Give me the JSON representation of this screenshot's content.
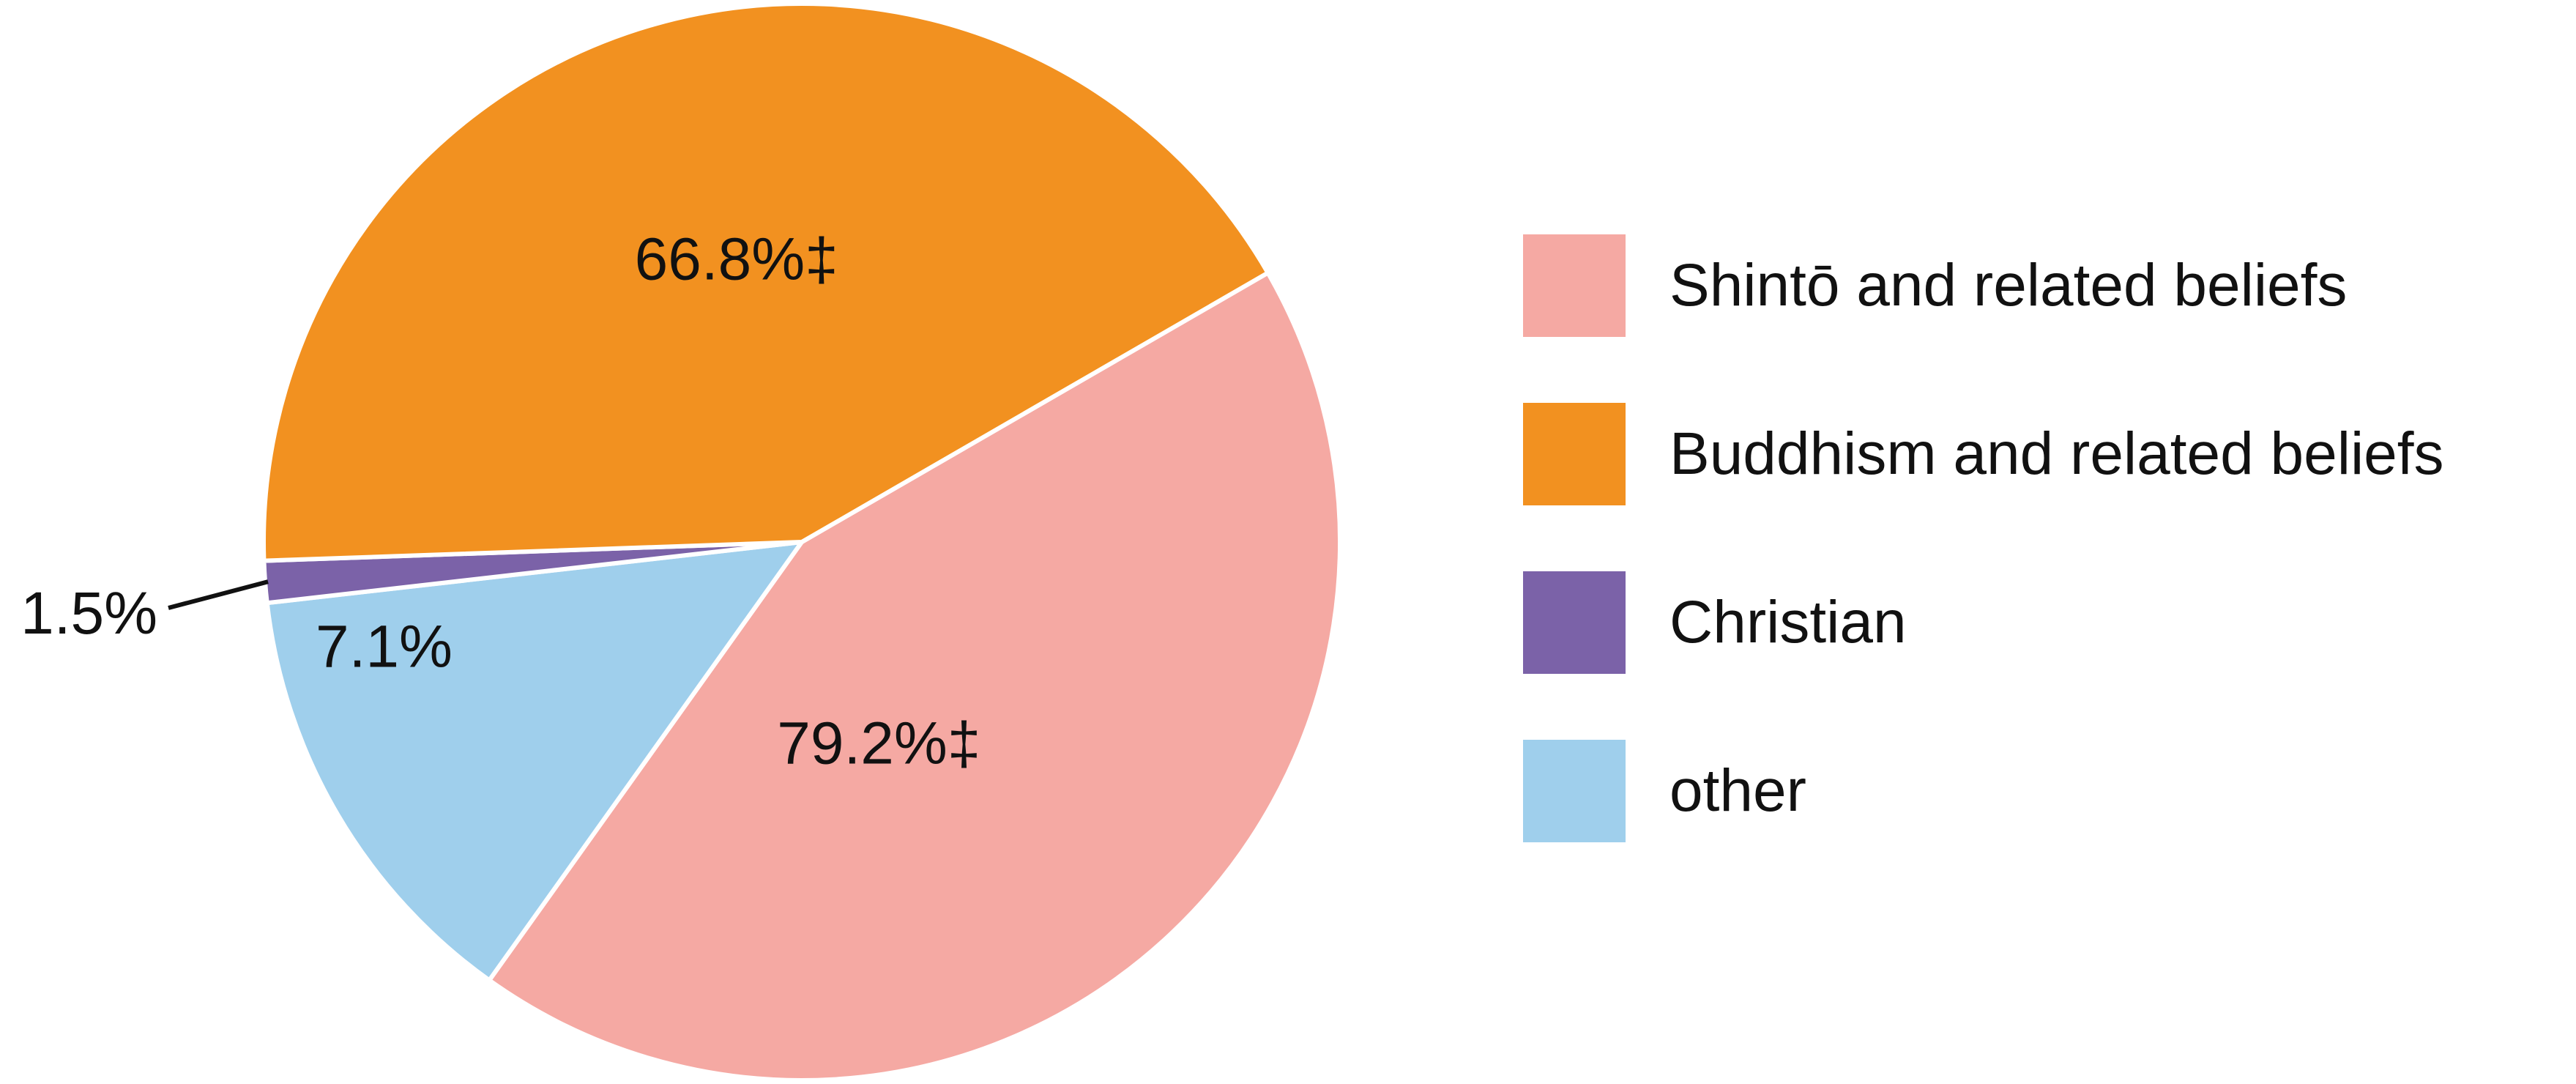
{
  "chart_data": {
    "type": "pie",
    "slices": [
      {
        "name": "Shintō and related beliefs",
        "value": 79.2,
        "label": "79.2%‡",
        "color": "#f5a9a3"
      },
      {
        "name": "Buddhism and related beliefs",
        "value": 66.8,
        "label": "66.8%‡",
        "color": "#f29120"
      },
      {
        "name": "Christian",
        "value": 1.5,
        "label": "1.5%",
        "color": "#7b62a8"
      },
      {
        "name": "other",
        "value": 7.1,
        "label": "7.1%",
        "color": "#9fcfec"
      }
    ],
    "legend_position": "right"
  }
}
